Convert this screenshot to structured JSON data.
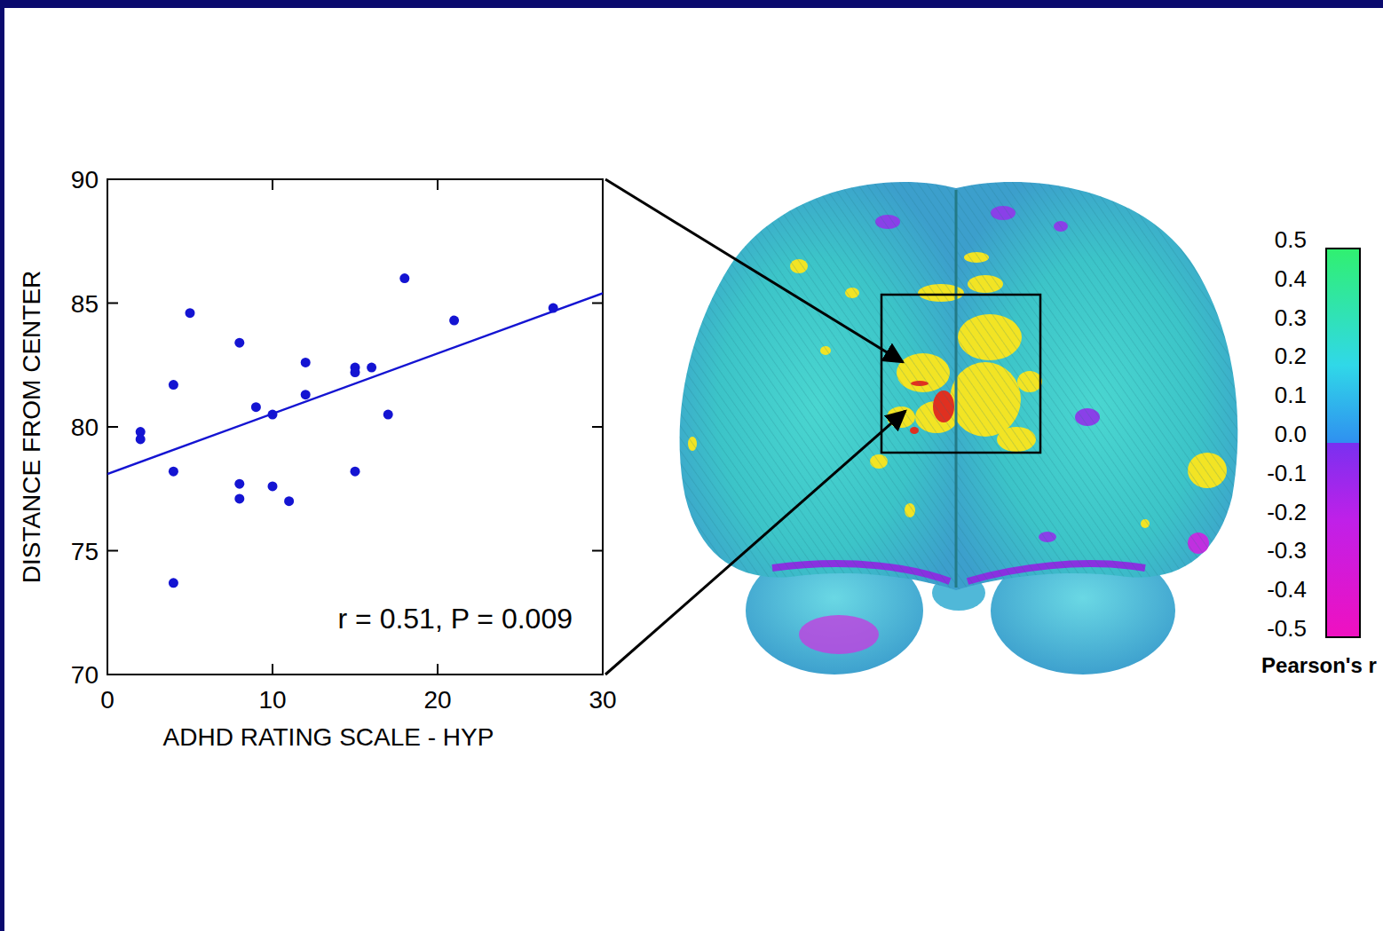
{
  "chart_data": {
    "type": "scatter",
    "xlabel": "ADHD RATING SCALE - HYP",
    "ylabel": "DISTANCE FROM CENTER",
    "annotation": "r = 0.51, P = 0.009",
    "xlim": [
      0,
      30
    ],
    "ylim": [
      70,
      90
    ],
    "xticks": [
      0,
      10,
      20,
      30
    ],
    "yticks": [
      70,
      75,
      80,
      85,
      90
    ],
    "series": [
      {
        "type": "scatter",
        "marker": "circle",
        "color": "#1414d2",
        "x": [
          2,
          2,
          4,
          4,
          4,
          5,
          8,
          8,
          8,
          9,
          10,
          10,
          11,
          12,
          12,
          15,
          15,
          15,
          16,
          17,
          18,
          21,
          27
        ],
        "values": [
          79.8,
          79.5,
          81.7,
          78.2,
          73.7,
          84.6,
          83.4,
          77.7,
          77.1,
          80.8,
          80.5,
          77.6,
          77.0,
          82.6,
          81.3,
          82.4,
          82.2,
          78.2,
          82.4,
          80.5,
          86.0,
          84.3,
          84.8
        ]
      },
      {
        "type": "line",
        "line_style": "solid",
        "color": "#1414d2",
        "x": [
          0,
          30
        ],
        "values": [
          78.1,
          85.4
        ]
      }
    ],
    "colorbar": {
      "label": "Pearson's r",
      "range": [
        -0.5,
        0.5
      ],
      "ticks": [
        -0.5,
        -0.4,
        -0.3,
        -0.2,
        -0.1,
        {
          "value": 0,
          "label": "0.0"
        },
        0.1,
        0.2,
        0.3,
        0.4,
        0.5
      ]
    }
  }
}
